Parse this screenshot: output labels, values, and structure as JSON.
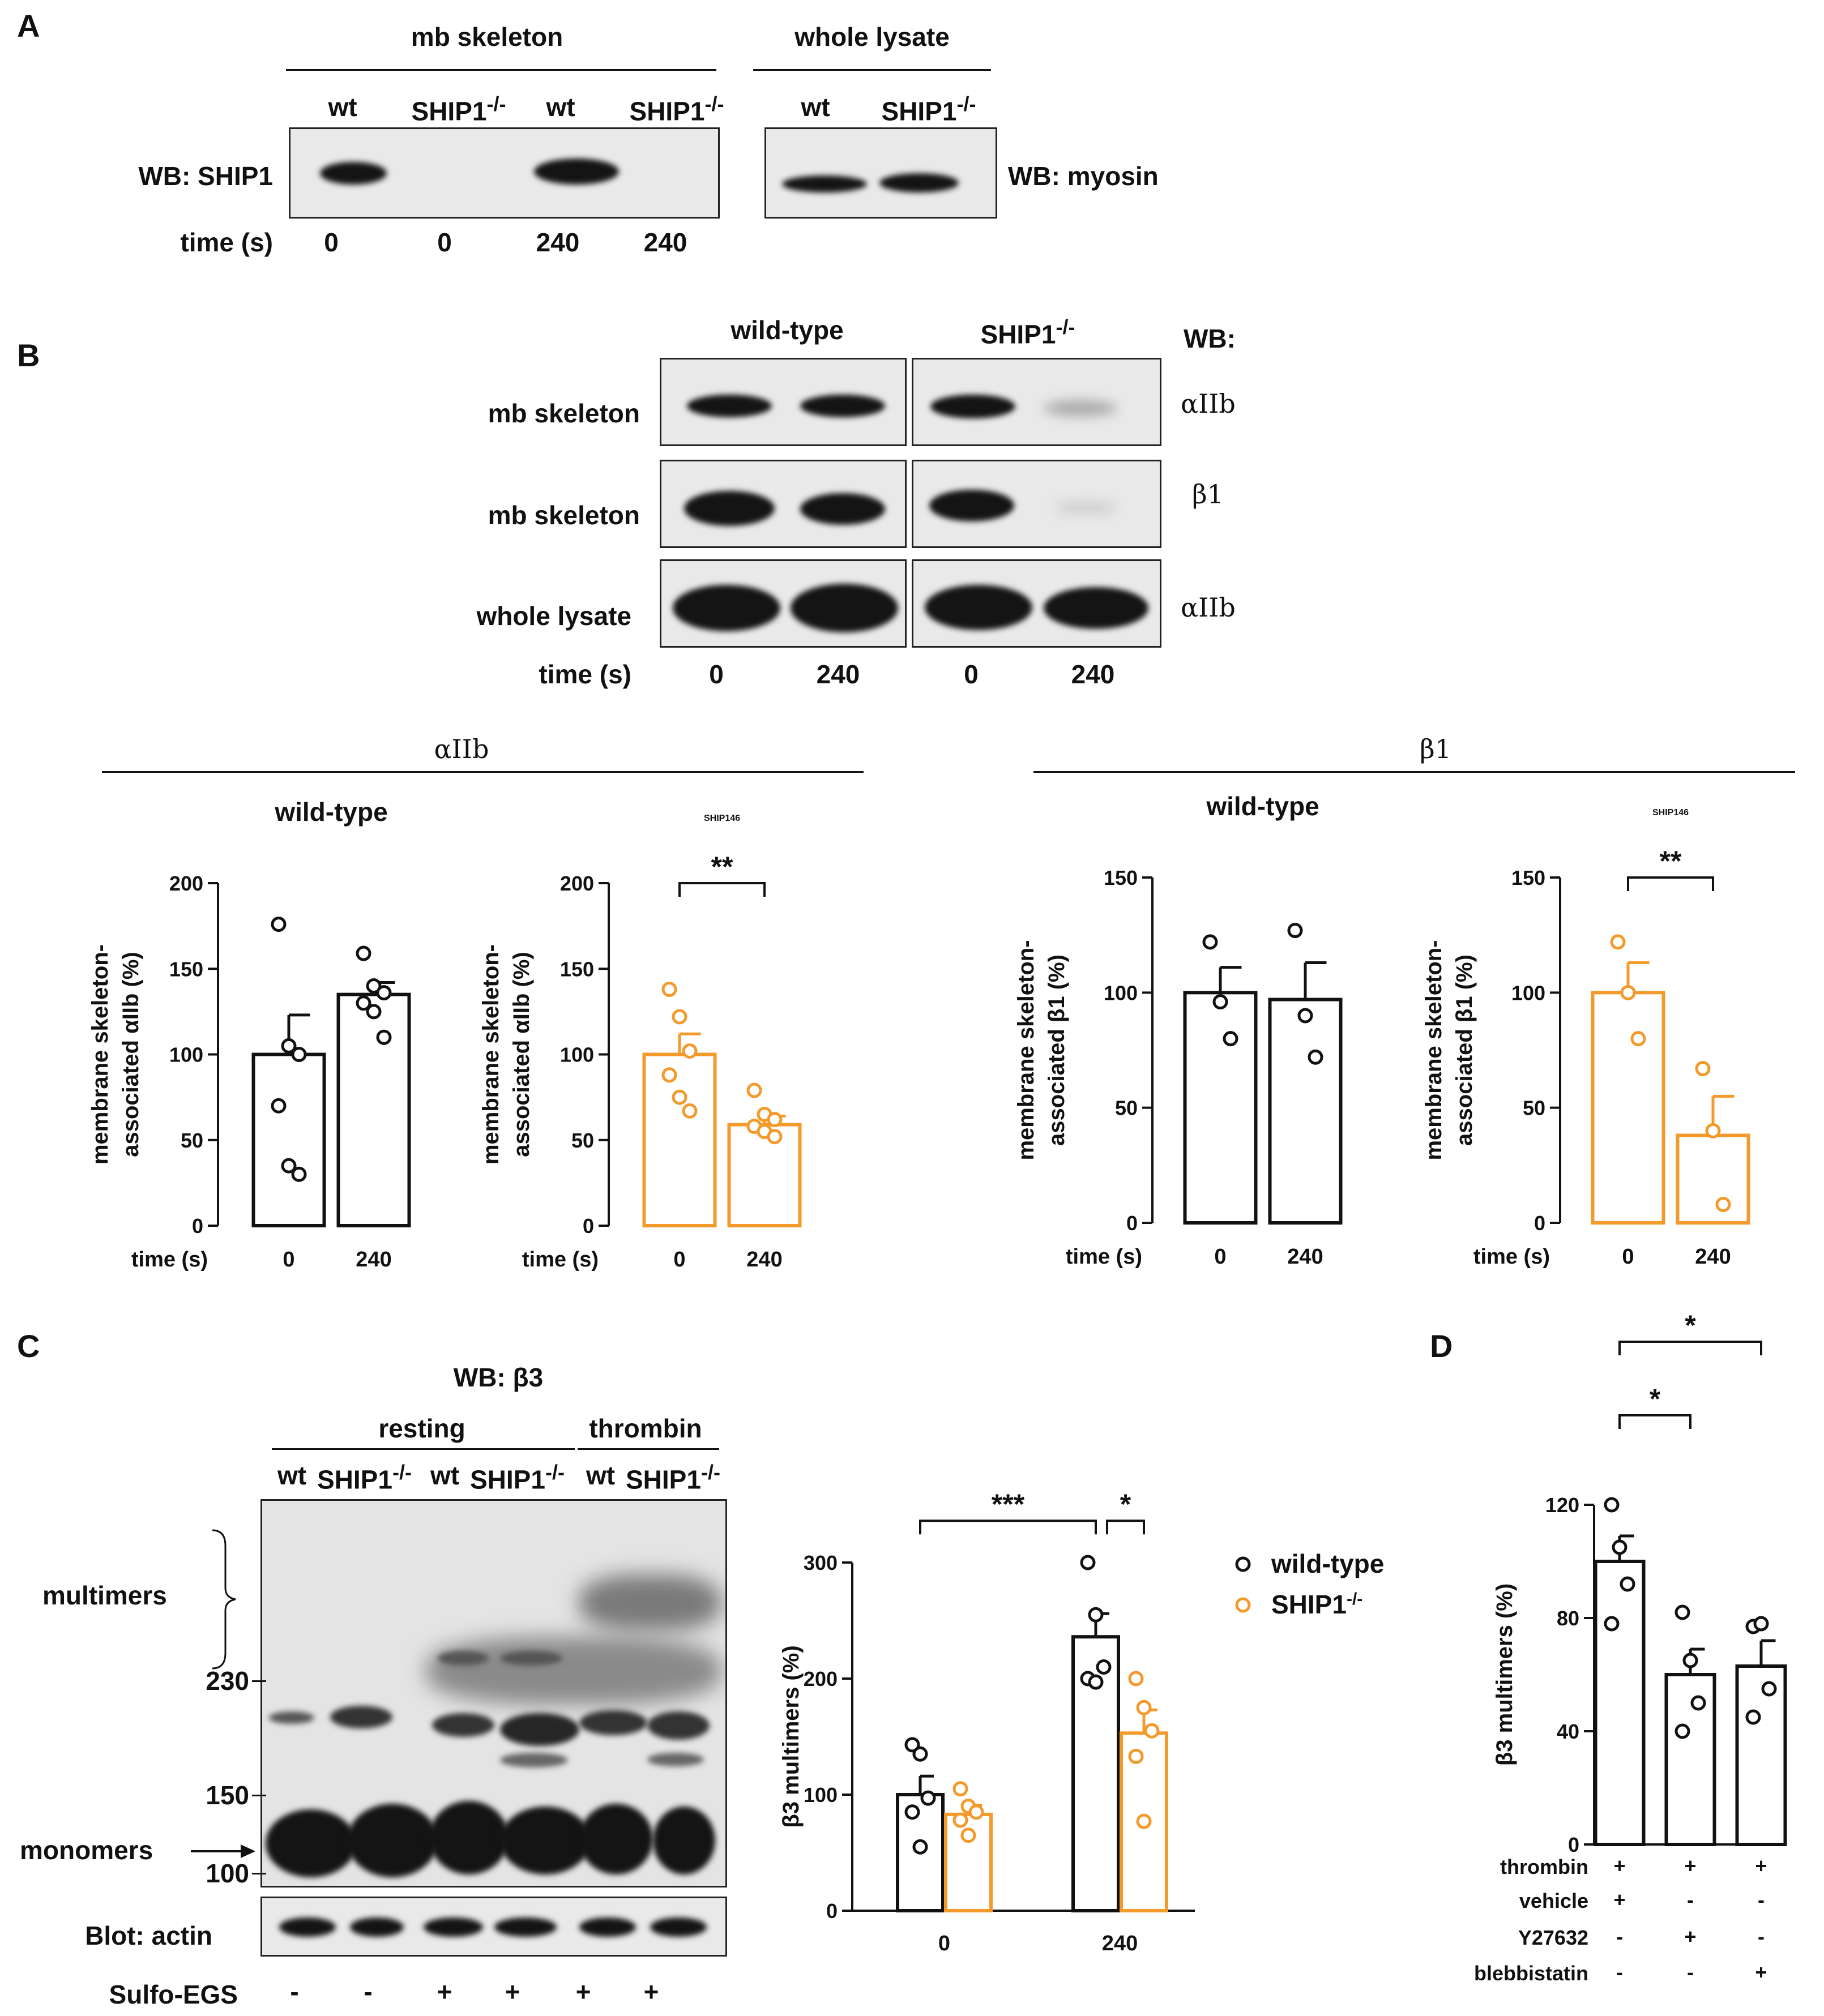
{
  "panel_labels": {
    "a": "A",
    "b": "B",
    "c": "C",
    "d": "D"
  },
  "panel_a": {
    "group_mb": "mb skeleton",
    "group_whole": "whole lysate",
    "lanes_mb": [
      "wt",
      "SHIP1",
      "wt",
      "SHIP1"
    ],
    "lanes_whole": [
      "wt",
      "SHIP1"
    ],
    "superscript": "-/-",
    "wb_left": "WB: SHIP1",
    "wb_right": "WB: myosin",
    "time_label": "time (s)",
    "times": [
      "0",
      "0",
      "240",
      "240"
    ]
  },
  "panel_b_blots": {
    "col_wt": "wild-type",
    "col_ko": "SHIP1",
    "superscript": "-/-",
    "wb_label": "WB:",
    "rows": [
      {
        "label": "mb skeleton",
        "target": "αIIb"
      },
      {
        "label": "mb skeleton",
        "target": "β1"
      },
      {
        "label": "whole lysate",
        "target": "αIIb"
      }
    ],
    "time_label": "time (s)",
    "times": [
      "0",
      "240",
      "0",
      "240"
    ]
  },
  "panel_b_groups": {
    "left": "αIIb",
    "right": "β1"
  },
  "panel_c": {
    "wb_title": "WB: β3",
    "group_resting": "resting",
    "group_thrombin": "thrombin",
    "lanes": [
      "wt",
      "SHIP1",
      "wt",
      "SHIP1",
      "wt",
      "SHIP1"
    ],
    "superscript": "-/-",
    "multimers": "multimers",
    "monomers": "monomers",
    "mw_markers": [
      "230",
      "150",
      "100"
    ],
    "actin_label": "Blot: actin",
    "sulfo_label": "Sulfo-EGS",
    "sulfo_signs": [
      "-",
      "-",
      "+",
      "+",
      "+",
      "+"
    ]
  },
  "panel_d": {
    "rows": [
      {
        "label": "thrombin",
        "signs": [
          "+",
          "+",
          "+"
        ]
      },
      {
        "label": "vehicle",
        "signs": [
          "+",
          "-",
          "-"
        ]
      },
      {
        "label": "Y27632",
        "signs": [
          "-",
          "+",
          "-"
        ]
      },
      {
        "label": "blebbistatin",
        "signs": [
          "-",
          "-",
          "+"
        ]
      }
    ]
  },
  "colors": {
    "wild_type": "#111111",
    "ship1": "#F39A2B"
  },
  "chart_data": [
    {
      "id": "b1",
      "type": "bar",
      "title": "wild-type",
      "ylabel": "membrane skeleton-associated αIIb (%)",
      "xlabel": "time (s)",
      "categories": [
        "0",
        "240"
      ],
      "values": [
        100,
        135
      ],
      "errors": [
        23,
        7
      ],
      "points": [
        [
          176,
          105,
          100,
          70,
          35,
          30
        ],
        [
          159,
          140,
          136,
          130,
          125,
          110
        ]
      ],
      "ylim": [
        0,
        200
      ],
      "yticks": [
        0,
        50,
        100,
        150,
        200
      ],
      "color": "#111111"
    },
    {
      "id": "b2",
      "type": "bar",
      "title": "SHIP1",
      "title_sup": "-/-",
      "ylabel": "membrane skeleton-associated αIIb (%)",
      "xlabel": "time (s)",
      "categories": [
        "0",
        "240"
      ],
      "values": [
        100,
        59
      ],
      "errors": [
        12,
        5
      ],
      "points": [
        [
          138,
          122,
          102,
          88,
          75,
          67
        ],
        [
          79,
          65,
          62,
          58,
          55,
          52
        ]
      ],
      "ylim": [
        0,
        200
      ],
      "yticks": [
        0,
        50,
        100,
        150,
        200
      ],
      "color": "#F39A2B",
      "significance": [
        {
          "from": 0,
          "to": 1,
          "label": "**"
        }
      ]
    },
    {
      "id": "b3",
      "type": "bar",
      "title": "wild-type",
      "ylabel": "membrane skeleton-associated β1 (%)",
      "xlabel": "time (s)",
      "categories": [
        "0",
        "240"
      ],
      "values": [
        100,
        97
      ],
      "errors": [
        11,
        16
      ],
      "points": [
        [
          122,
          96,
          80
        ],
        [
          127,
          90,
          72
        ]
      ],
      "ylim": [
        0,
        150
      ],
      "yticks": [
        0,
        50,
        100,
        150
      ],
      "color": "#111111"
    },
    {
      "id": "b4",
      "type": "bar",
      "title": "SHIP1",
      "title_sup": "-/-",
      "ylabel": "membrane skeleton-associated β1 (%)",
      "xlabel": "time (s)",
      "categories": [
        "0",
        "240"
      ],
      "values": [
        100,
        38
      ],
      "errors": [
        13,
        17
      ],
      "points": [
        [
          122,
          100,
          80
        ],
        [
          67,
          40,
          8
        ]
      ],
      "ylim": [
        0,
        150
      ],
      "yticks": [
        0,
        50,
        100,
        150
      ],
      "color": "#F39A2B",
      "significance": [
        {
          "from": 0,
          "to": 1,
          "label": "**"
        }
      ]
    },
    {
      "id": "c",
      "type": "bar",
      "ylabel": "β3 multimers (%)",
      "categories": [
        "0",
        "240"
      ],
      "series": [
        {
          "name": "wild-type",
          "values": [
            100,
            236
          ],
          "errors": [
            16,
            20
          ],
          "color": "#111111",
          "points": [
            [
              143,
              135,
              97,
              85,
              55
            ],
            [
              300,
              255,
              210,
              200,
              197
            ]
          ]
        },
        {
          "name": "SHIP1",
          "name_sup": "-/-",
          "values": [
            83,
            153
          ],
          "errors": [
            8,
            20
          ],
          "color": "#F39A2B",
          "points": [
            [
              105,
              90,
              85,
              78,
              65
            ],
            [
              200,
              175,
              155,
              133,
              77
            ]
          ]
        }
      ],
      "ylim": [
        0,
        300
      ],
      "yticks": [
        0,
        100,
        200,
        300
      ],
      "significance": [
        {
          "label": "***",
          "between": "wild-type 0 vs wild-type 240"
        },
        {
          "label": "*",
          "between": "wild-type 240 vs SHIP1 240"
        }
      ]
    },
    {
      "id": "d",
      "type": "bar",
      "ylabel": "β3 multimers (%)",
      "categories": [
        "thrombin + vehicle",
        "thrombin + Y27632",
        "thrombin + blebbistatin"
      ],
      "values": [
        100,
        60,
        63
      ],
      "errors": [
        9,
        9,
        9
      ],
      "points": [
        [
          120,
          105,
          92,
          78
        ],
        [
          82,
          65,
          50,
          40
        ],
        [
          77,
          78,
          55,
          45
        ]
      ],
      "ylim": [
        0,
        120
      ],
      "yticks": [
        0,
        40,
        80,
        120
      ],
      "color": "#111111",
      "significance": [
        {
          "from": 0,
          "to": 1,
          "label": "*"
        },
        {
          "from": 0,
          "to": 2,
          "label": "*"
        }
      ]
    }
  ]
}
